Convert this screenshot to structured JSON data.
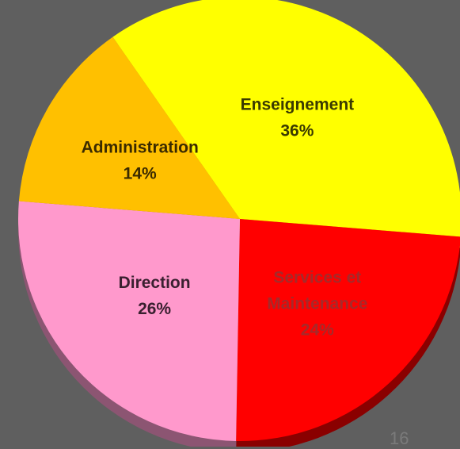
{
  "chart_data": {
    "type": "pie",
    "slices": [
      {
        "label_lines": [
          "Enseignement"
        ],
        "value_label": "36%",
        "value": 36,
        "color": "#ffff00",
        "side_color": "#a8a800",
        "text_color": "#3a3a00"
      },
      {
        "label_lines": [
          "Services et",
          "Maintenance"
        ],
        "value_label": "24%",
        "value": 24,
        "color": "#ff0000",
        "side_color": "#8a0000",
        "text_color": "#a52a2a"
      },
      {
        "label_lines": [
          "Direction"
        ],
        "value_label": "26%",
        "value": 26,
        "color": "#ff99cc",
        "side_color": "#8c5572",
        "text_color": "#3a2030"
      },
      {
        "label_lines": [
          "Administration"
        ],
        "value_label": "14%",
        "value": 14,
        "color": "#ffc000",
        "side_color": "#9a7400",
        "text_color": "#3a2a00"
      }
    ]
  },
  "page": {
    "number": "16"
  }
}
